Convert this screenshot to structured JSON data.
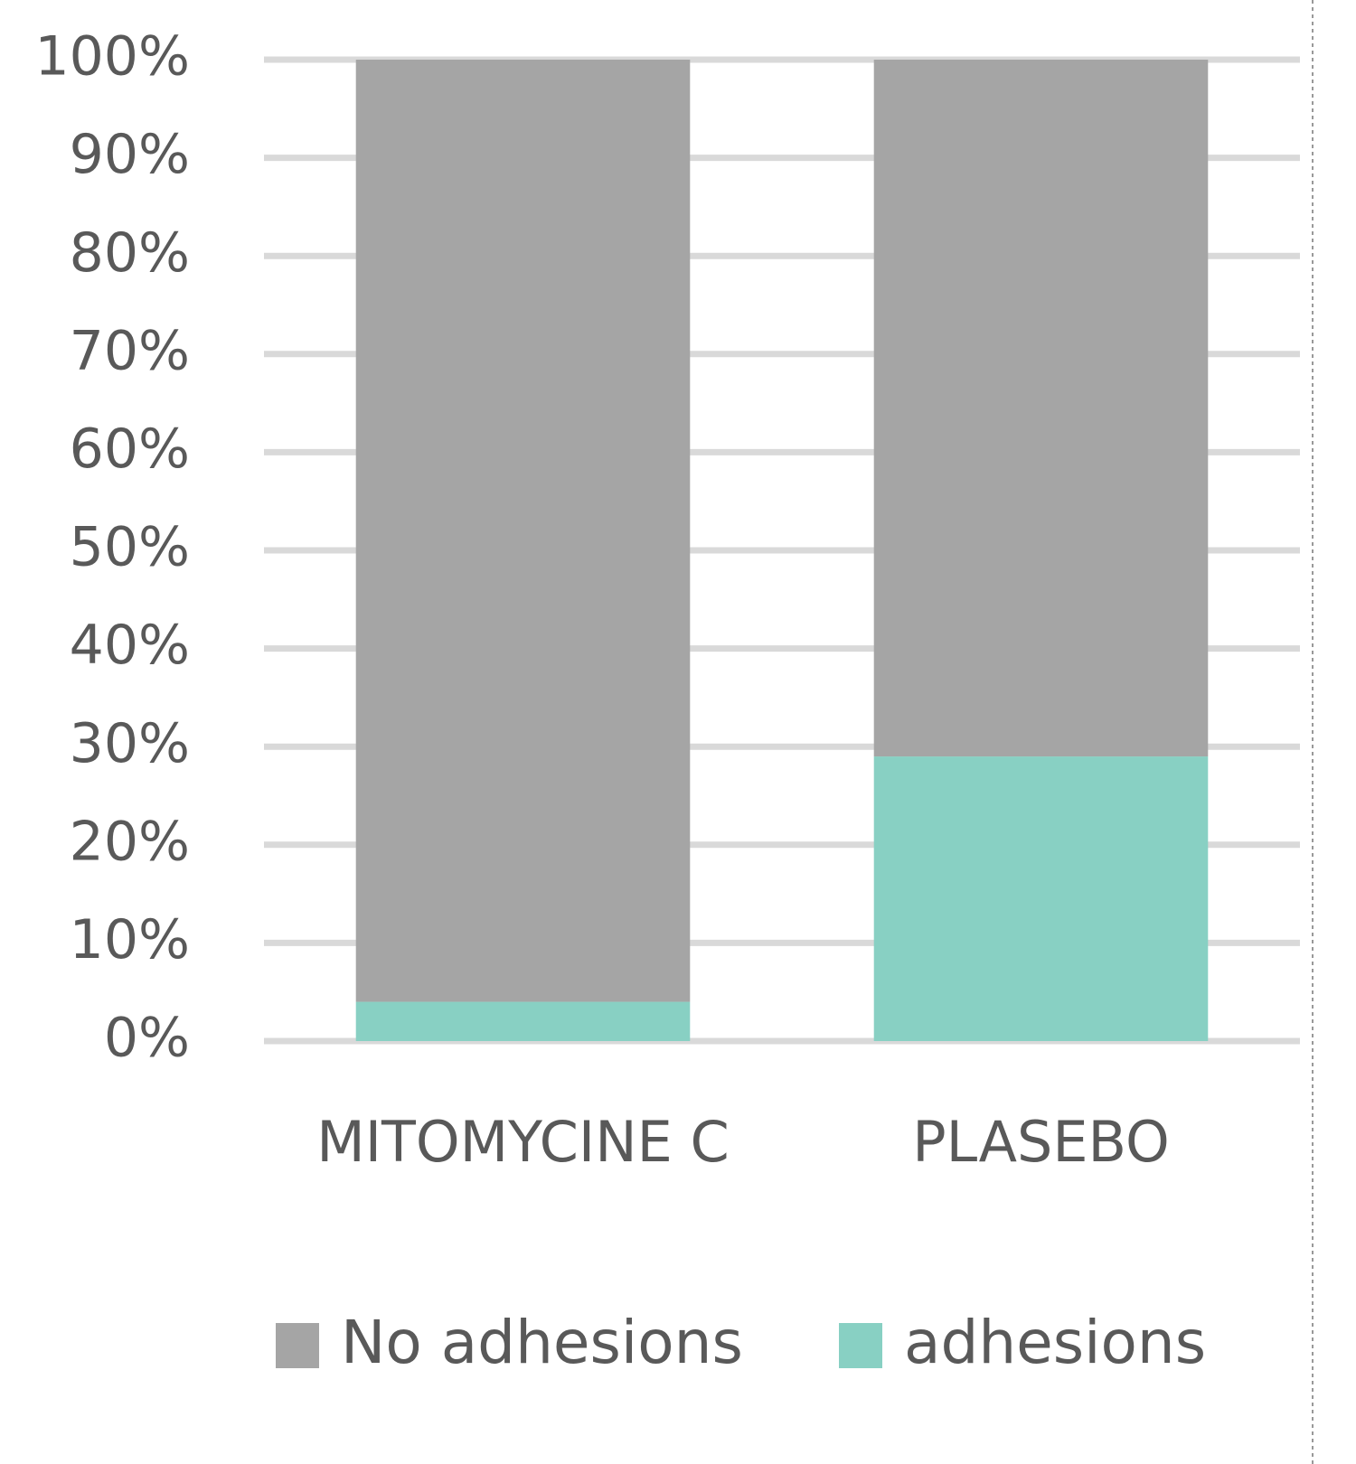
{
  "chart_data": {
    "type": "bar",
    "stacked": true,
    "categories": [
      "MITOMYCINE C",
      "PLASEBO"
    ],
    "series": [
      {
        "name": "No adhesions",
        "color": "#a5a5a5",
        "values": [
          96,
          71
        ]
      },
      {
        "name": "adhesions",
        "color": "#88d0c3",
        "values": [
          4,
          29
        ]
      }
    ],
    "ylim": [
      0,
      100
    ],
    "yticks": [
      {
        "value": 0,
        "label": "0%"
      },
      {
        "value": 10,
        "label": "10%"
      },
      {
        "value": 20,
        "label": "20%"
      },
      {
        "value": 30,
        "label": "30%"
      },
      {
        "value": 40,
        "label": "40%"
      },
      {
        "value": 50,
        "label": "50%"
      },
      {
        "value": 60,
        "label": "60%"
      },
      {
        "value": 70,
        "label": "70%"
      },
      {
        "value": 80,
        "label": "80%"
      },
      {
        "value": 90,
        "label": "90%"
      },
      {
        "value": 100,
        "label": "100%"
      }
    ],
    "grid": true,
    "grid_color": "#d9d9d9",
    "legend": "bottom"
  }
}
